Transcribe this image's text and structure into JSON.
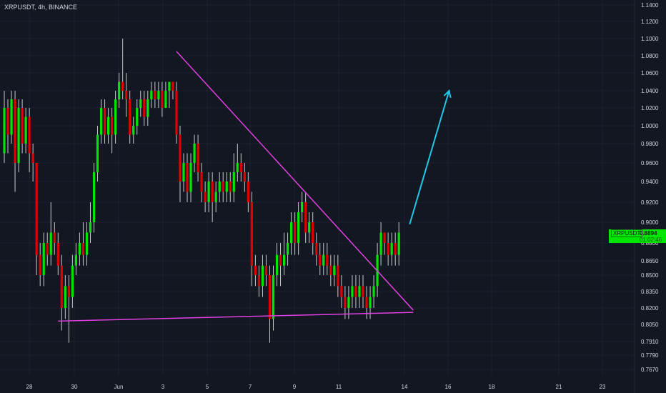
{
  "header": {
    "symbol_line": "XRPUSDT, 4h, BINANCE"
  },
  "price_tag": {
    "symbol": "XRPUSDT",
    "price": "0.8894",
    "countdown": "01:02:46"
  },
  "colors": {
    "background": "#131722",
    "up": "#00e600",
    "down": "#e00000",
    "wick": "#c8c8c8",
    "trendline": "#e040e0",
    "arrow": "#1fc8e6",
    "grid": "#1e2230",
    "axis_text": "#d1d4dc"
  },
  "chart_data": {
    "type": "candlestick",
    "title": "XRPUSDT, 4h, BINANCE",
    "xlabel": "",
    "ylabel": "",
    "ylim": [
      0.755,
      1.145
    ],
    "y_ticks": [
      "1.1400",
      "1.1200",
      "1.1000",
      "1.0800",
      "1.0600",
      "1.0400",
      "1.0200",
      "1.0000",
      "0.9800",
      "0.9600",
      "0.9400",
      "0.9200",
      "0.9000",
      "0.8800",
      "0.8650",
      "0.8500",
      "0.8350",
      "0.8200",
      "0.8050",
      "0.7910",
      "0.7790",
      "0.7670"
    ],
    "x_ticks": [
      "28",
      "30",
      "Jun",
      "3",
      "5",
      "7",
      "9",
      "11",
      "14",
      "16",
      "18",
      "21",
      "23"
    ],
    "grid": false,
    "candles": [
      [
        0.97,
        1.02,
        1.04,
        0.96
      ],
      [
        1.02,
        0.99,
        1.03,
        0.97
      ],
      [
        0.99,
        1.03,
        1.04,
        0.98
      ],
      [
        1.03,
        0.96,
        1.04,
        0.93
      ],
      [
        0.96,
        1.02,
        1.03,
        0.95
      ],
      [
        1.02,
        0.98,
        1.03,
        0.97
      ],
      [
        0.98,
        1.01,
        1.02,
        0.97
      ],
      [
        1.01,
        0.97,
        1.02,
        0.95
      ],
      [
        0.97,
        0.96,
        0.98,
        0.94
      ],
      [
        0.96,
        0.87,
        0.96,
        0.85
      ],
      [
        0.87,
        0.85,
        0.88,
        0.84
      ],
      [
        0.85,
        0.88,
        0.89,
        0.84
      ],
      [
        0.88,
        0.87,
        0.89,
        0.86
      ],
      [
        0.87,
        0.89,
        0.92,
        0.86
      ],
      [
        0.89,
        0.88,
        0.9,
        0.87
      ],
      [
        0.88,
        0.86,
        0.89,
        0.85
      ],
      [
        0.86,
        0.82,
        0.87,
        0.8
      ],
      [
        0.82,
        0.84,
        0.85,
        0.81
      ],
      [
        0.84,
        0.83,
        0.85,
        0.79
      ],
      [
        0.83,
        0.86,
        0.87,
        0.82
      ],
      [
        0.86,
        0.87,
        0.88,
        0.85
      ],
      [
        0.87,
        0.88,
        0.89,
        0.86
      ],
      [
        0.88,
        0.87,
        0.9,
        0.86
      ],
      [
        0.87,
        0.89,
        0.9,
        0.86
      ],
      [
        0.89,
        0.9,
        0.92,
        0.88
      ],
      [
        0.9,
        0.95,
        0.96,
        0.89
      ],
      [
        0.95,
        0.99,
        1.0,
        0.94
      ],
      [
        0.99,
        1.02,
        1.03,
        0.98
      ],
      [
        1.02,
        0.99,
        1.03,
        0.98
      ],
      [
        0.99,
        1.01,
        1.02,
        0.98
      ],
      [
        1.01,
        0.99,
        1.02,
        0.97
      ],
      [
        0.99,
        1.03,
        1.04,
        0.98
      ],
      [
        1.03,
        1.05,
        1.06,
        1.02
      ],
      [
        1.05,
        1.04,
        1.1,
        1.03
      ],
      [
        1.04,
        1.03,
        1.06,
        1.01
      ],
      [
        1.03,
        0.99,
        1.04,
        0.98
      ],
      [
        0.99,
        1.0,
        1.01,
        0.98
      ],
      [
        1.0,
        1.02,
        1.03,
        0.99
      ],
      [
        1.02,
        1.03,
        1.04,
        1.01
      ],
      [
        1.03,
        1.01,
        1.04,
        1.0
      ],
      [
        1.01,
        1.03,
        1.04,
        1.0
      ],
      [
        1.03,
        1.04,
        1.05,
        1.02
      ],
      [
        1.04,
        1.03,
        1.05,
        1.02
      ],
      [
        1.03,
        1.04,
        1.05,
        1.02
      ],
      [
        1.04,
        1.02,
        1.05,
        1.01
      ],
      [
        1.02,
        1.04,
        1.05,
        1.02
      ],
      [
        1.04,
        1.05,
        1.05,
        1.02
      ],
      [
        1.05,
        1.04,
        1.05,
        1.03
      ],
      [
        1.04,
        0.99,
        1.05,
        0.98
      ],
      [
        0.99,
        0.94,
        1.0,
        0.92
      ],
      [
        0.94,
        0.96,
        0.97,
        0.93
      ],
      [
        0.96,
        0.93,
        0.97,
        0.92
      ],
      [
        0.93,
        0.96,
        0.97,
        0.92
      ],
      [
        0.96,
        0.98,
        0.99,
        0.95
      ],
      [
        0.98,
        0.95,
        0.99,
        0.94
      ],
      [
        0.95,
        0.93,
        0.96,
        0.92
      ],
      [
        0.93,
        0.92,
        0.94,
        0.91
      ],
      [
        0.92,
        0.94,
        0.95,
        0.91
      ],
      [
        0.94,
        0.92,
        0.95,
        0.9
      ],
      [
        0.92,
        0.93,
        0.94,
        0.91
      ],
      [
        0.93,
        0.94,
        0.95,
        0.92
      ],
      [
        0.94,
        0.93,
        0.95,
        0.92
      ],
      [
        0.93,
        0.94,
        0.95,
        0.92
      ],
      [
        0.94,
        0.93,
        0.95,
        0.92
      ],
      [
        0.93,
        0.95,
        0.97,
        0.92
      ],
      [
        0.95,
        0.96,
        0.98,
        0.94
      ],
      [
        0.96,
        0.95,
        0.97,
        0.94
      ],
      [
        0.95,
        0.94,
        0.96,
        0.93
      ],
      [
        0.94,
        0.92,
        0.95,
        0.91
      ],
      [
        0.92,
        0.86,
        0.93,
        0.84
      ],
      [
        0.86,
        0.85,
        0.87,
        0.84
      ],
      [
        0.85,
        0.84,
        0.86,
        0.83
      ],
      [
        0.84,
        0.86,
        0.87,
        0.83
      ],
      [
        0.86,
        0.85,
        0.87,
        0.84
      ],
      [
        0.85,
        0.81,
        0.86,
        0.79
      ],
      [
        0.81,
        0.85,
        0.86,
        0.8
      ],
      [
        0.85,
        0.87,
        0.88,
        0.84
      ],
      [
        0.87,
        0.86,
        0.88,
        0.84
      ],
      [
        0.86,
        0.87,
        0.89,
        0.85
      ],
      [
        0.87,
        0.88,
        0.89,
        0.86
      ],
      [
        0.88,
        0.9,
        0.91,
        0.87
      ],
      [
        0.9,
        0.88,
        0.91,
        0.87
      ],
      [
        0.88,
        0.91,
        0.92,
        0.87
      ],
      [
        0.91,
        0.92,
        0.93,
        0.9
      ],
      [
        0.92,
        0.89,
        0.93,
        0.88
      ],
      [
        0.89,
        0.9,
        0.91,
        0.88
      ],
      [
        0.9,
        0.88,
        0.91,
        0.87
      ],
      [
        0.88,
        0.87,
        0.89,
        0.86
      ],
      [
        0.87,
        0.86,
        0.88,
        0.85
      ],
      [
        0.86,
        0.87,
        0.88,
        0.85
      ],
      [
        0.87,
        0.86,
        0.88,
        0.85
      ],
      [
        0.86,
        0.85,
        0.87,
        0.84
      ],
      [
        0.85,
        0.86,
        0.87,
        0.84
      ],
      [
        0.86,
        0.84,
        0.87,
        0.83
      ],
      [
        0.84,
        0.83,
        0.85,
        0.82
      ],
      [
        0.83,
        0.82,
        0.84,
        0.81
      ],
      [
        0.82,
        0.83,
        0.84,
        0.81
      ],
      [
        0.83,
        0.84,
        0.85,
        0.82
      ],
      [
        0.84,
        0.83,
        0.85,
        0.82
      ],
      [
        0.83,
        0.84,
        0.85,
        0.82
      ],
      [
        0.84,
        0.83,
        0.85,
        0.82
      ],
      [
        0.83,
        0.82,
        0.84,
        0.81
      ],
      [
        0.82,
        0.83,
        0.84,
        0.81
      ],
      [
        0.83,
        0.84,
        0.85,
        0.82
      ],
      [
        0.84,
        0.87,
        0.88,
        0.83
      ],
      [
        0.87,
        0.89,
        0.9,
        0.86
      ],
      [
        0.89,
        0.88,
        0.89,
        0.87
      ],
      [
        0.88,
        0.87,
        0.89,
        0.86
      ],
      [
        0.87,
        0.88,
        0.89,
        0.86
      ],
      [
        0.88,
        0.87,
        0.89,
        0.86
      ],
      [
        0.87,
        0.89,
        0.9,
        0.86
      ]
    ],
    "annotations": [
      {
        "type": "descending-trendline",
        "from": [
          48,
          1.085
        ],
        "to": [
          114,
          0.818
        ]
      },
      {
        "type": "support-line",
        "from": [
          15,
          0.808
        ],
        "to": [
          114,
          0.816
        ]
      },
      {
        "type": "arrow",
        "from": [
          113,
          0.898
        ],
        "to": [
          124,
          1.04
        ]
      }
    ]
  }
}
